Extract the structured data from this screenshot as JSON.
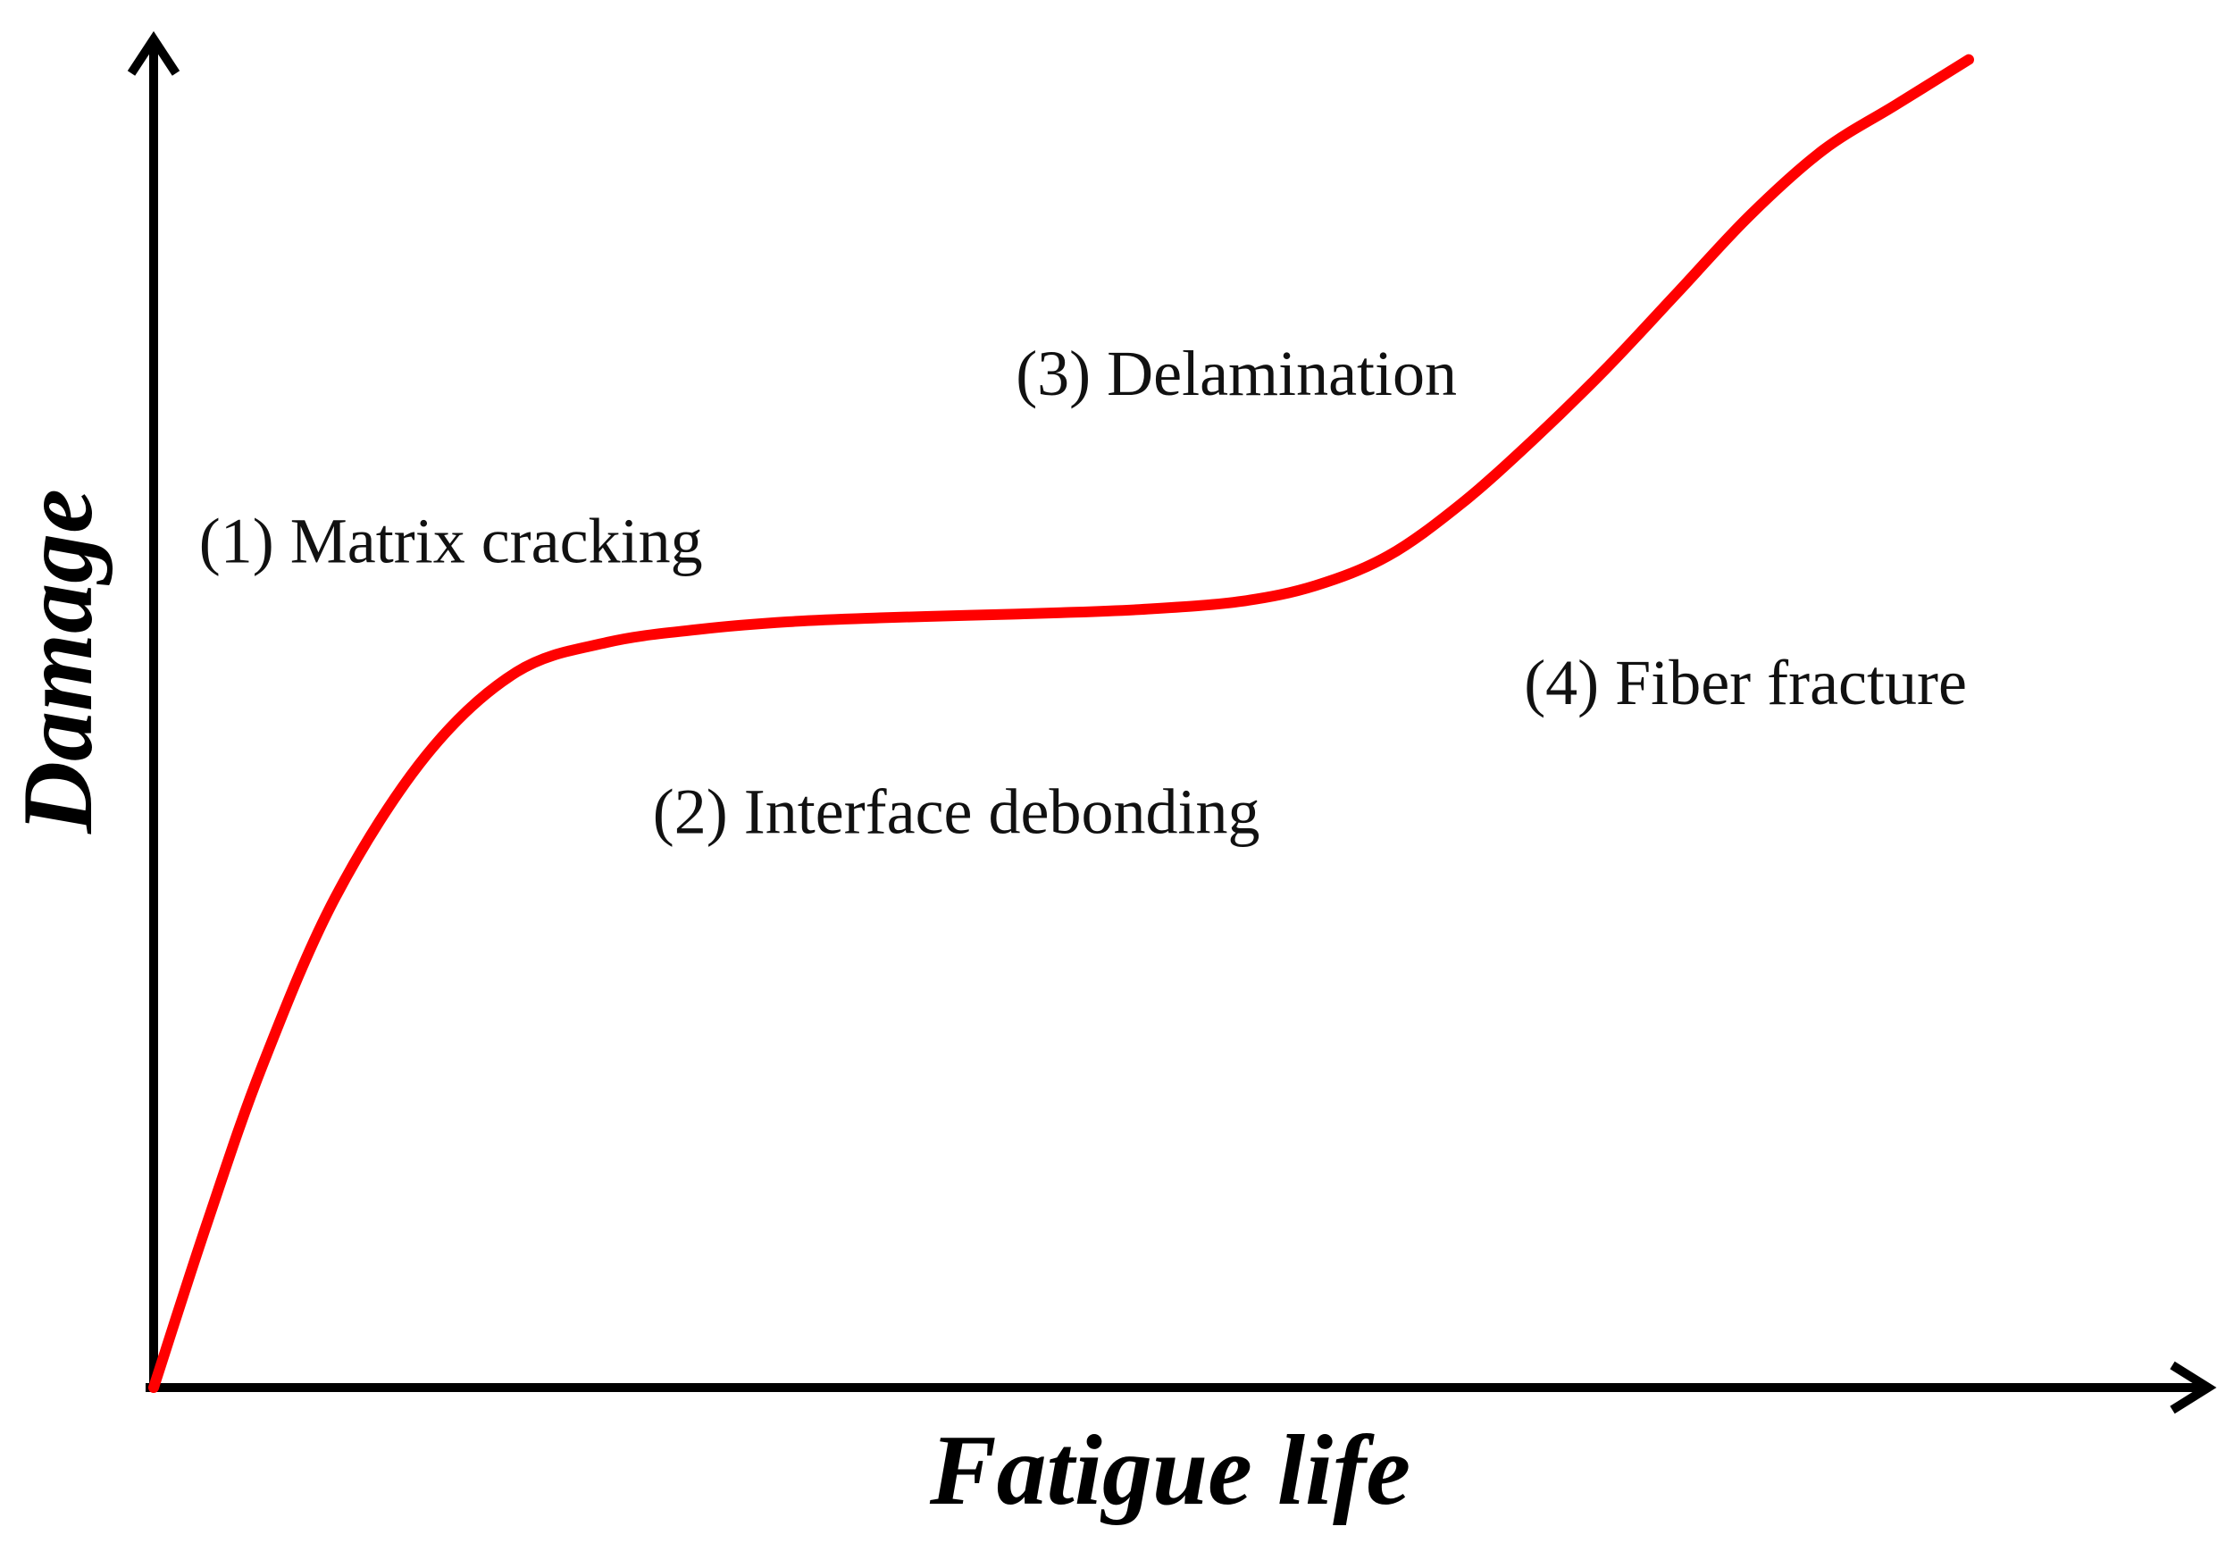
{
  "chart_data": {
    "type": "line",
    "title": "",
    "xlabel": "Fatigue life",
    "ylabel": "Damage",
    "xlim": [
      0,
      100
    ],
    "ylim": [
      0,
      100
    ],
    "grid": false,
    "series": [
      {
        "color": "#ff0000",
        "x": [
          0,
          3,
          6,
          10,
          15,
          20,
          25,
          30,
          35,
          40,
          45,
          50,
          55,
          60,
          64,
          68,
          72,
          76,
          80,
          84,
          88,
          92,
          96,
          100
        ],
        "y": [
          0,
          13,
          25,
          38,
          49,
          55.5,
          57.8,
          58.8,
          59.4,
          59.7,
          59.9,
          60.1,
          60.4,
          61,
          62.2,
          64.5,
          68.5,
          73.5,
          79,
          85,
          91,
          96,
          99.5,
          103
        ]
      }
    ],
    "annotations": [
      {
        "text": "(1) Matrix cracking",
        "x": 2.5,
        "y": 64
      },
      {
        "text": "(2) Interface debonding",
        "x": 27.5,
        "y": 43
      },
      {
        "text": "(3) Delamination",
        "x": 47.5,
        "y": 77
      },
      {
        "text": "(4) Fiber fracture",
        "x": 75.5,
        "y": 53
      }
    ],
    "line_color": "#ff0000",
    "axis_color": "#000000"
  }
}
